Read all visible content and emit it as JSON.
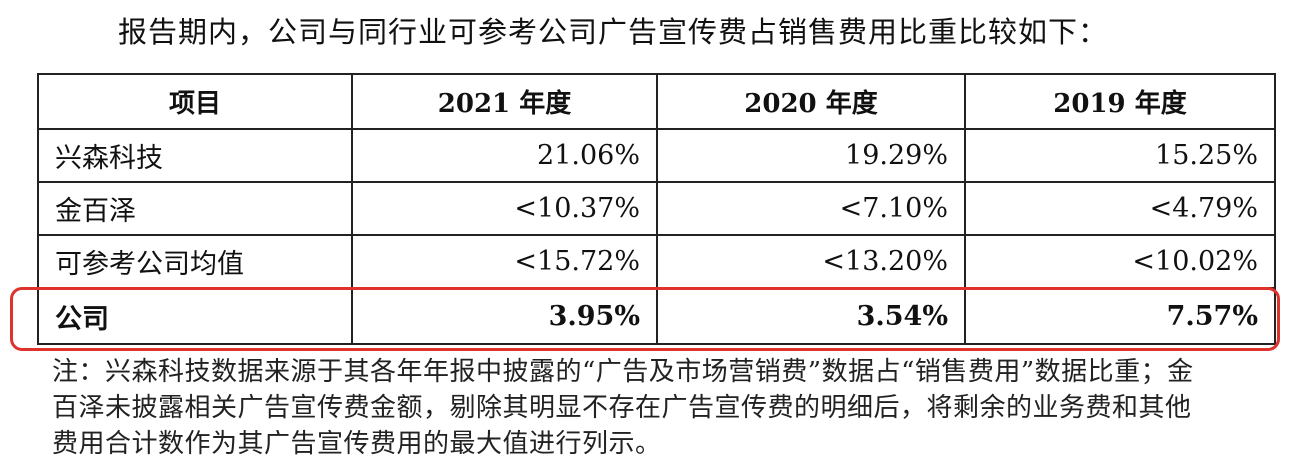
{
  "intro_text": "报告期内，公司与同行业可参考公司广告宣传费占销售费用比重比较如下：",
  "table": {
    "headers": [
      "项目",
      "2021 年度",
      "2020 年度",
      "2019 年度"
    ],
    "rows": [
      {
        "label": "兴森科技",
        "values": [
          "21.06%",
          "19.29%",
          "15.25%"
        ]
      },
      {
        "label": "金百泽",
        "values": [
          "<10.37%",
          "<7.10%",
          "<4.79%"
        ]
      },
      {
        "label": "可参考公司均值",
        "values": [
          "<15.72%",
          "<13.20%",
          "<10.02%"
        ]
      },
      {
        "label": "公司",
        "values": [
          "3.95%",
          "3.54%",
          "7.57%"
        ]
      }
    ]
  },
  "highlight_color": "#e0322d",
  "note": {
    "line1": "注：兴森科技数据来源于其各年年报中披露的“广告及市场营销费”数据占“销售费用”数据比重；金",
    "line2": "百泽未披露相关广告宣传费金额，剔除其明显不存在广告宣传费的明细后，将剩余的业务费和其他",
    "line3": "费用合计数作为其广告宣传费用的最大值进行列示。"
  }
}
